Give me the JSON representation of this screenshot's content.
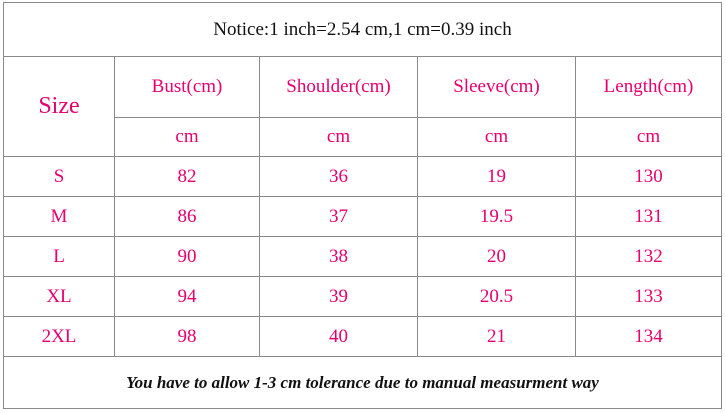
{
  "notice": "Notice:1 inch=2.54 cm,1 cm=0.39 inch",
  "table": {
    "header": {
      "size": "Size",
      "columns": [
        "Bust(cm)",
        "Shoulder(cm)",
        "Sleeve(cm)",
        "Length(cm)"
      ],
      "units": [
        "cm",
        "cm",
        "cm",
        "cm"
      ]
    },
    "rows": [
      [
        "S",
        "82",
        "36",
        "19",
        "130"
      ],
      [
        "M",
        "86",
        "37",
        "19.5",
        "131"
      ],
      [
        "L",
        "90",
        "38",
        "20",
        "132"
      ],
      [
        "XL",
        "94",
        "39",
        "20.5",
        "133"
      ],
      [
        "2XL",
        "98",
        "40",
        "21",
        "134"
      ]
    ]
  },
  "footer": "You have to allow 1-3 cm tolerance due to manual measurment way"
}
